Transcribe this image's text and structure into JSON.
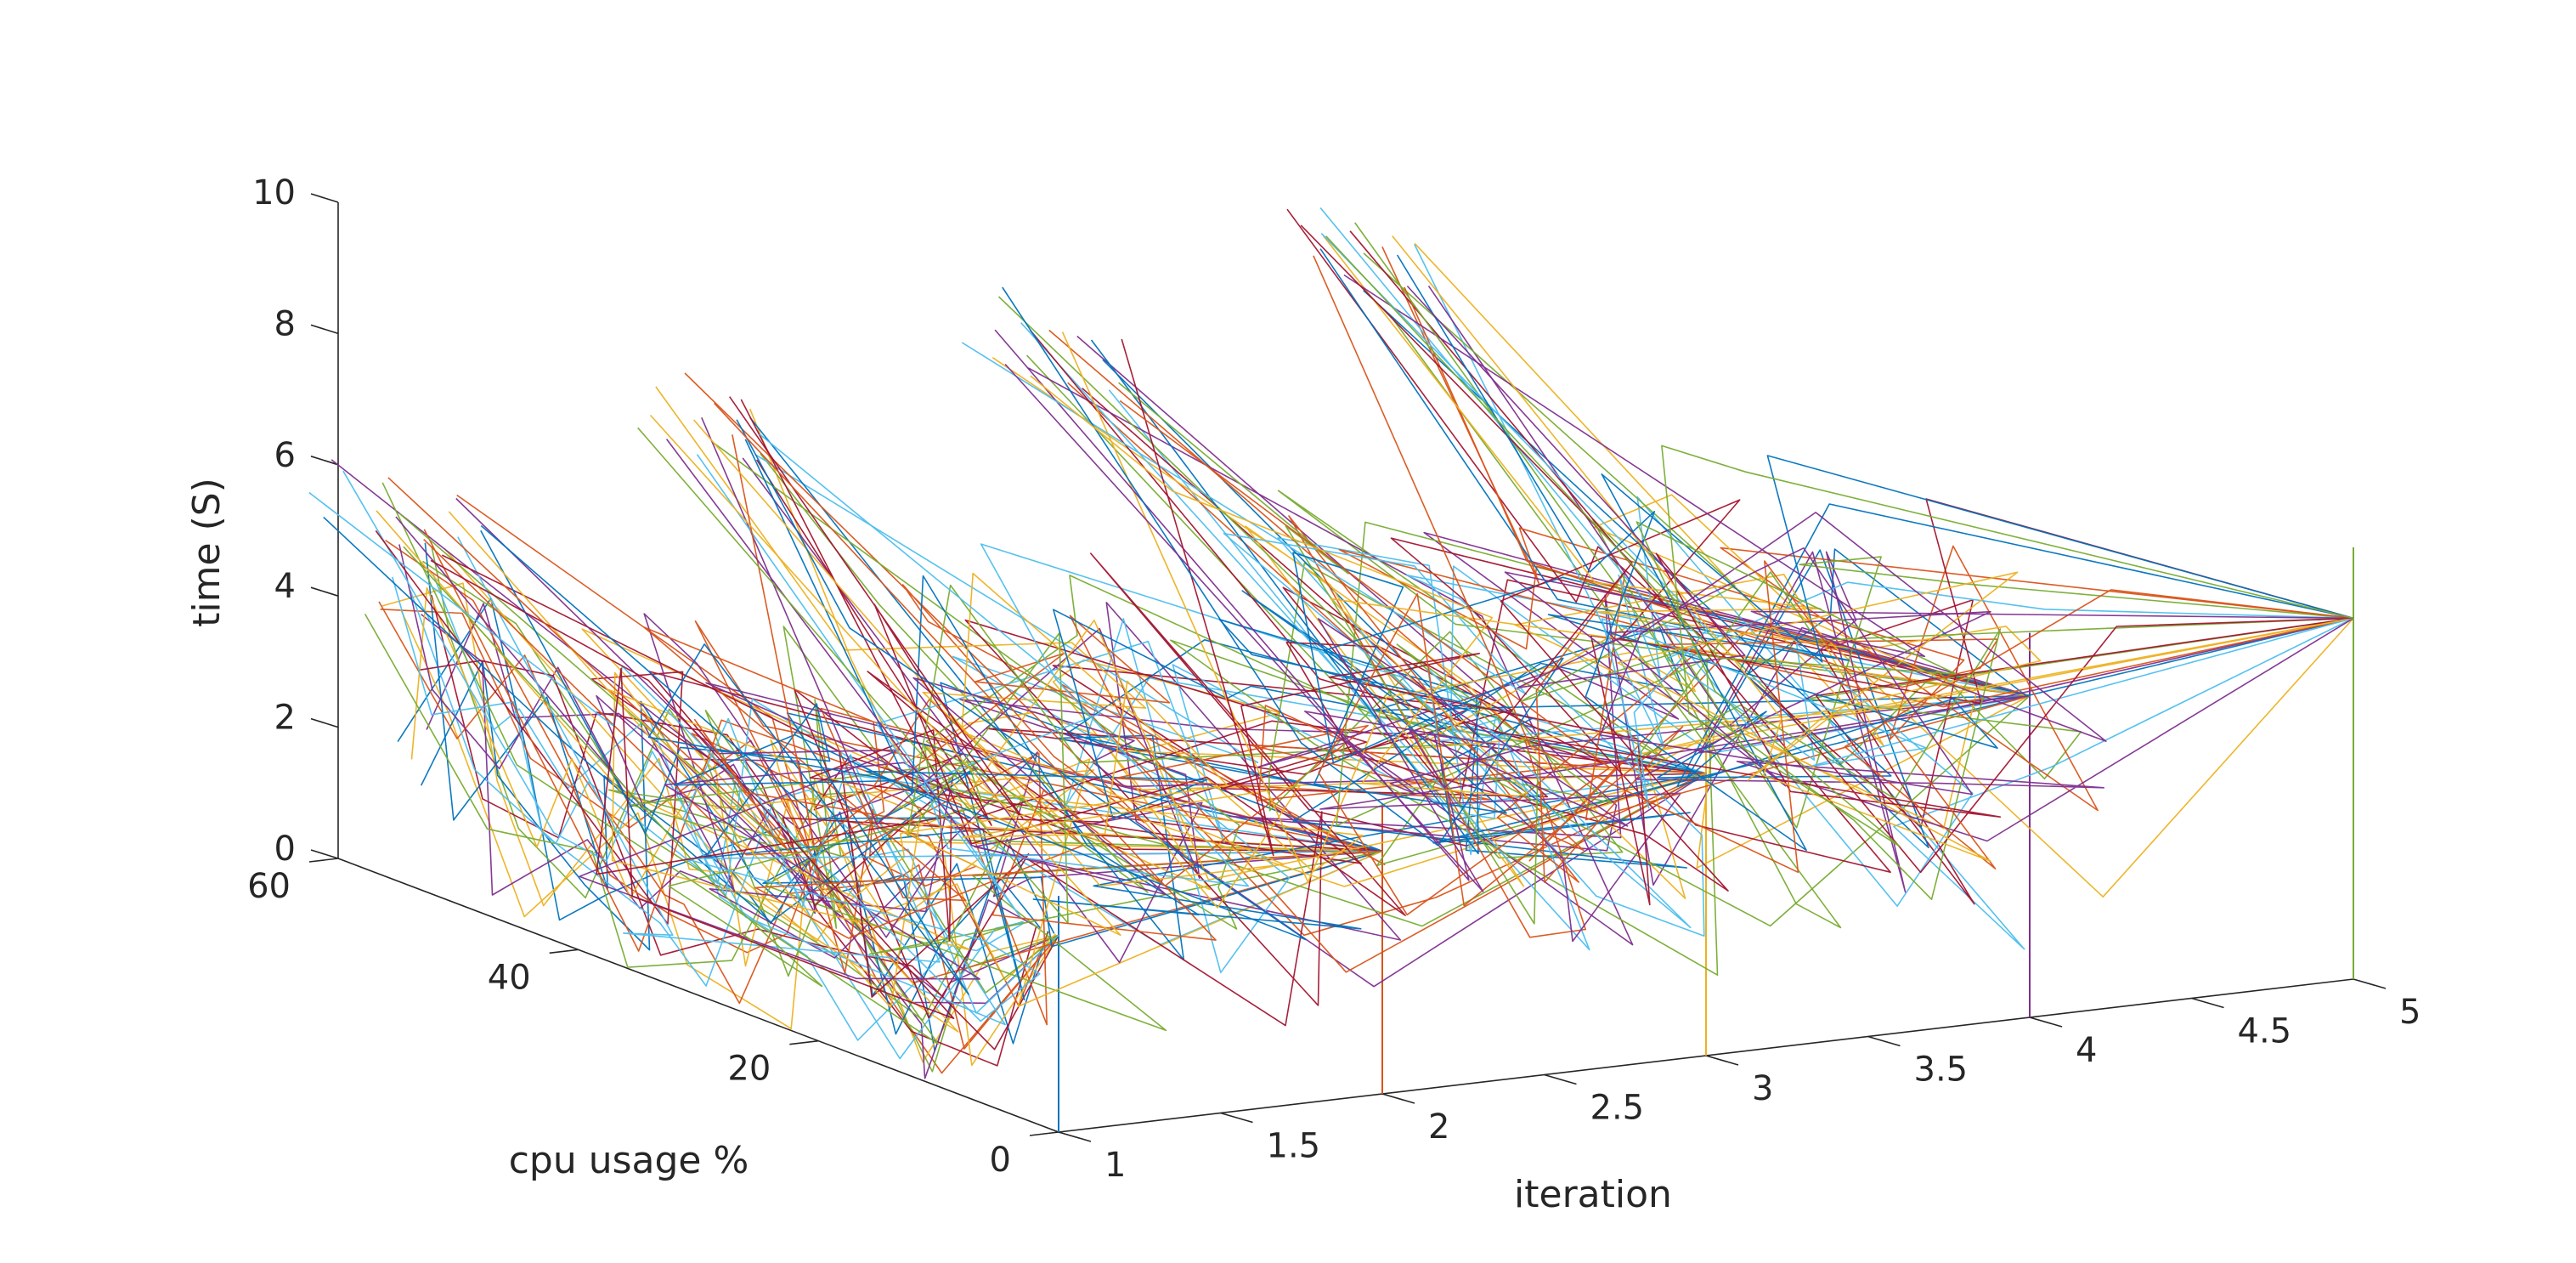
{
  "chart_data": {
    "type": "line",
    "title": "",
    "projection": "3d",
    "xlabel": "iteration",
    "ylabel": "cpu usage %",
    "zlabel": "time (S)",
    "xlim": [
      1,
      5
    ],
    "ylim": [
      0,
      60
    ],
    "zlim": [
      0,
      10
    ],
    "x_ticks": [
      "1",
      "1.5",
      "2",
      "2.5",
      "3",
      "3.5",
      "4",
      "4.5",
      "5"
    ],
    "y_ticks": [
      "0",
      "20",
      "40",
      "60"
    ],
    "z_ticks": [
      "0",
      "2",
      "4",
      "6",
      "8",
      "10"
    ],
    "grid": false,
    "legend": "none",
    "color_order": [
      "#0072BD",
      "#D95319",
      "#EDB120",
      "#7E2F8E",
      "#77AC30",
      "#4DBEEE",
      "#A2142F"
    ],
    "peak_time_per_iteration": [
      {
        "iteration": 1,
        "cpu": 0,
        "time": 3.0
      },
      {
        "iteration": 2,
        "cpu": 0,
        "time": 3.7
      },
      {
        "iteration": 3,
        "cpu": 0,
        "time": 4.3
      },
      {
        "iteration": 4,
        "cpu": 0,
        "time": 4.9
      },
      {
        "iteration": 5,
        "cpu": 0,
        "time": 5.5
      }
    ]
  }
}
